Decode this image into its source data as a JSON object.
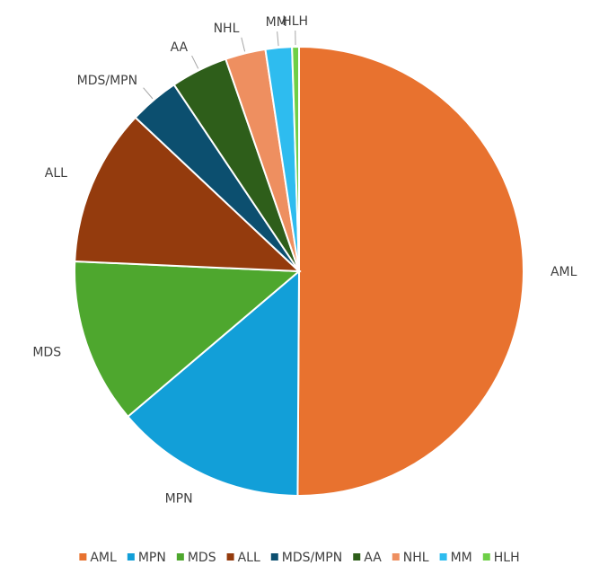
{
  "chart_data": {
    "type": "pie",
    "categories": [
      "AML",
      "MPN",
      "MDS",
      "ALL",
      "MDS/MPN",
      "AA",
      "NHL",
      "MM",
      "HLH"
    ],
    "values": [
      50.1,
      13.7,
      11.9,
      11.3,
      3.6,
      4.1,
      2.9,
      1.9,
      0.5
    ],
    "colors": [
      "#e8722f",
      "#129fd8",
      "#4ea72e",
      "#943b0d",
      "#0c4f6f",
      "#2e5e1a",
      "#ee8f60",
      "#2ebcef",
      "#6ecf47"
    ],
    "legend": "bottom"
  }
}
